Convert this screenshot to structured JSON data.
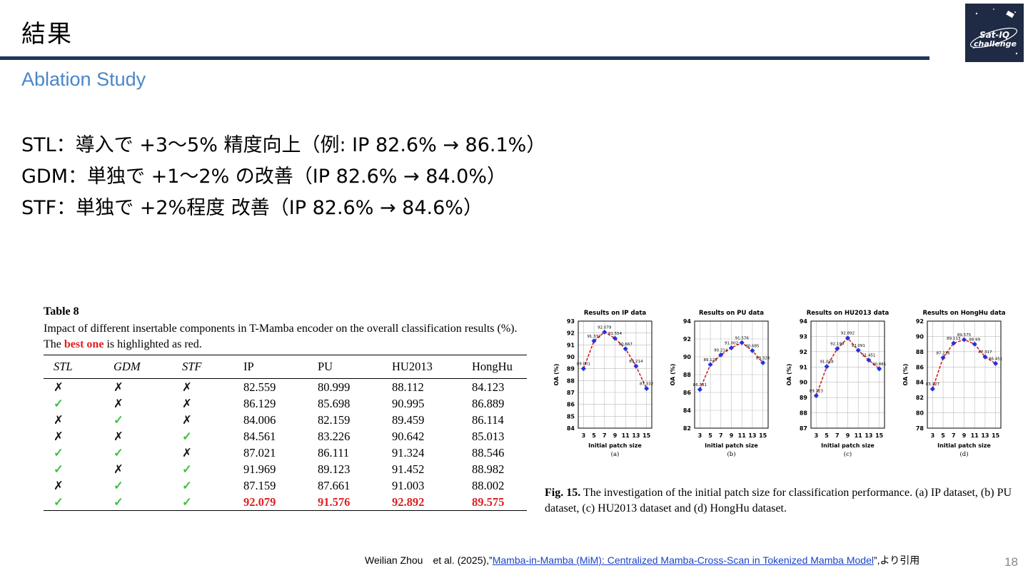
{
  "slide": {
    "title": "結果",
    "subtitle": "Ablation Study",
    "page_number": "18"
  },
  "logo": {
    "text_line1": "Sat-IQ",
    "text_line2": "challenge"
  },
  "bullets": [
    "STL：導入で +3〜5% 精度向上（例: IP 82.6% → 86.1%）",
    "GDM：単独で +1〜2% の改善（IP 82.6% → 84.0%）",
    "STF：単独で +2%程度 改善（IP 82.6% → 84.6%）"
  ],
  "table8": {
    "label": "Table 8",
    "caption_before": "Impact of different insertable components in T-Mamba encoder on the overall classification results (%). The ",
    "caption_highlight": "best one",
    "caption_after": " is highlighted as red.",
    "headers": [
      "STL",
      "GDM",
      "STF",
      "IP",
      "PU",
      "HU2013",
      "HongHu"
    ],
    "rows": [
      {
        "stl": "✗",
        "gdm": "✗",
        "stf": "✗",
        "ip": "82.559",
        "pu": "80.999",
        "hu": "88.112",
        "hh": "84.123"
      },
      {
        "stl": "✓",
        "gdm": "✗",
        "stf": "✗",
        "ip": "86.129",
        "pu": "85.698",
        "hu": "90.995",
        "hh": "86.889"
      },
      {
        "stl": "✗",
        "gdm": "✓",
        "stf": "✗",
        "ip": "84.006",
        "pu": "82.159",
        "hu": "89.459",
        "hh": "86.114"
      },
      {
        "stl": "✗",
        "gdm": "✗",
        "stf": "✓",
        "ip": "84.561",
        "pu": "83.226",
        "hu": "90.642",
        "hh": "85.013"
      },
      {
        "stl": "✓",
        "gdm": "✓",
        "stf": "✗",
        "ip": "87.021",
        "pu": "86.111",
        "hu": "91.324",
        "hh": "88.546"
      },
      {
        "stl": "✓",
        "gdm": "✗",
        "stf": "✓",
        "ip": "91.969",
        "pu": "89.123",
        "hu": "91.452",
        "hh": "88.982"
      },
      {
        "stl": "✗",
        "gdm": "✓",
        "stf": "✓",
        "ip": "87.159",
        "pu": "87.661",
        "hu": "91.003",
        "hh": "88.002"
      },
      {
        "stl": "✓",
        "gdm": "✓",
        "stf": "✓",
        "ip": "92.079",
        "pu": "91.576",
        "hu": "92.892",
        "hh": "89.575"
      }
    ]
  },
  "figure15": {
    "caption_label": "Fig. 15.",
    "caption_text": " The investigation of the initial patch size for classification performance. (a) IP dataset, (b) PU dataset, (c) HU2013 dataset and (d) HongHu dataset."
  },
  "chart_data": [
    {
      "type": "line",
      "title": "Results on IP data",
      "xlabel": "Initial patch size",
      "ylabel": "OA (%)",
      "sublabel": "(a)",
      "x": [
        3,
        5,
        7,
        9,
        11,
        13,
        15
      ],
      "values": [
        89.001,
        91.332,
        92.079,
        91.554,
        90.667,
        89.214,
        87.332
      ],
      "ylim": [
        84,
        93
      ],
      "yticks": [
        84,
        85,
        86,
        87,
        88,
        89,
        90,
        91,
        92,
        93
      ]
    },
    {
      "type": "line",
      "title": "Results on PU data",
      "xlabel": "Initial patch size",
      "ylabel": "OA (%)",
      "sublabel": "(b)",
      "x": [
        3,
        5,
        7,
        9,
        11,
        13,
        15
      ],
      "values": [
        86.331,
        89.128,
        90.214,
        91.002,
        91.576,
        90.685,
        89.328
      ],
      "ylim": [
        82,
        94
      ],
      "yticks": [
        82,
        84,
        86,
        88,
        90,
        92,
        94
      ]
    },
    {
      "type": "line",
      "title": "Results on HU2013 data",
      "xlabel": "Initial patch size",
      "ylabel": "OA (%)",
      "sublabel": "(c)",
      "x": [
        3,
        5,
        7,
        9,
        11,
        13,
        15
      ],
      "values": [
        89.123,
        91.028,
        92.199,
        92.892,
        92.091,
        91.451,
        90.881
      ],
      "ylim": [
        87,
        94
      ],
      "yticks": [
        87,
        88,
        89,
        90,
        91,
        92,
        93,
        94
      ]
    },
    {
      "type": "line",
      "title": "Results on HongHu data",
      "xlabel": "Initial patch size",
      "ylabel": "OA (%)",
      "sublabel": "(d)",
      "x": [
        3,
        5,
        7,
        9,
        11,
        13,
        15
      ],
      "values": [
        83.127,
        87.216,
        89.113,
        89.575,
        88.99,
        87.317,
        86.451
      ],
      "ylim": [
        78,
        92
      ],
      "yticks": [
        78,
        80,
        82,
        84,
        86,
        88,
        90,
        92
      ]
    }
  ],
  "citation": {
    "before": "Weilian Zhou　et al. (2025),”",
    "link": "Mamba-in-Mamba (MiM): Centralized Mamba-Cross-Scan in Tokenized Mamba Model",
    "after": "”,より引用"
  },
  "colors": {
    "title_rule": "#1d3659",
    "subtitle": "#4a86c8",
    "check": "#3fbf3f",
    "best": "#e02020",
    "curve": "#d62020",
    "marker": "#2233dd",
    "link": "#1a44c9"
  }
}
